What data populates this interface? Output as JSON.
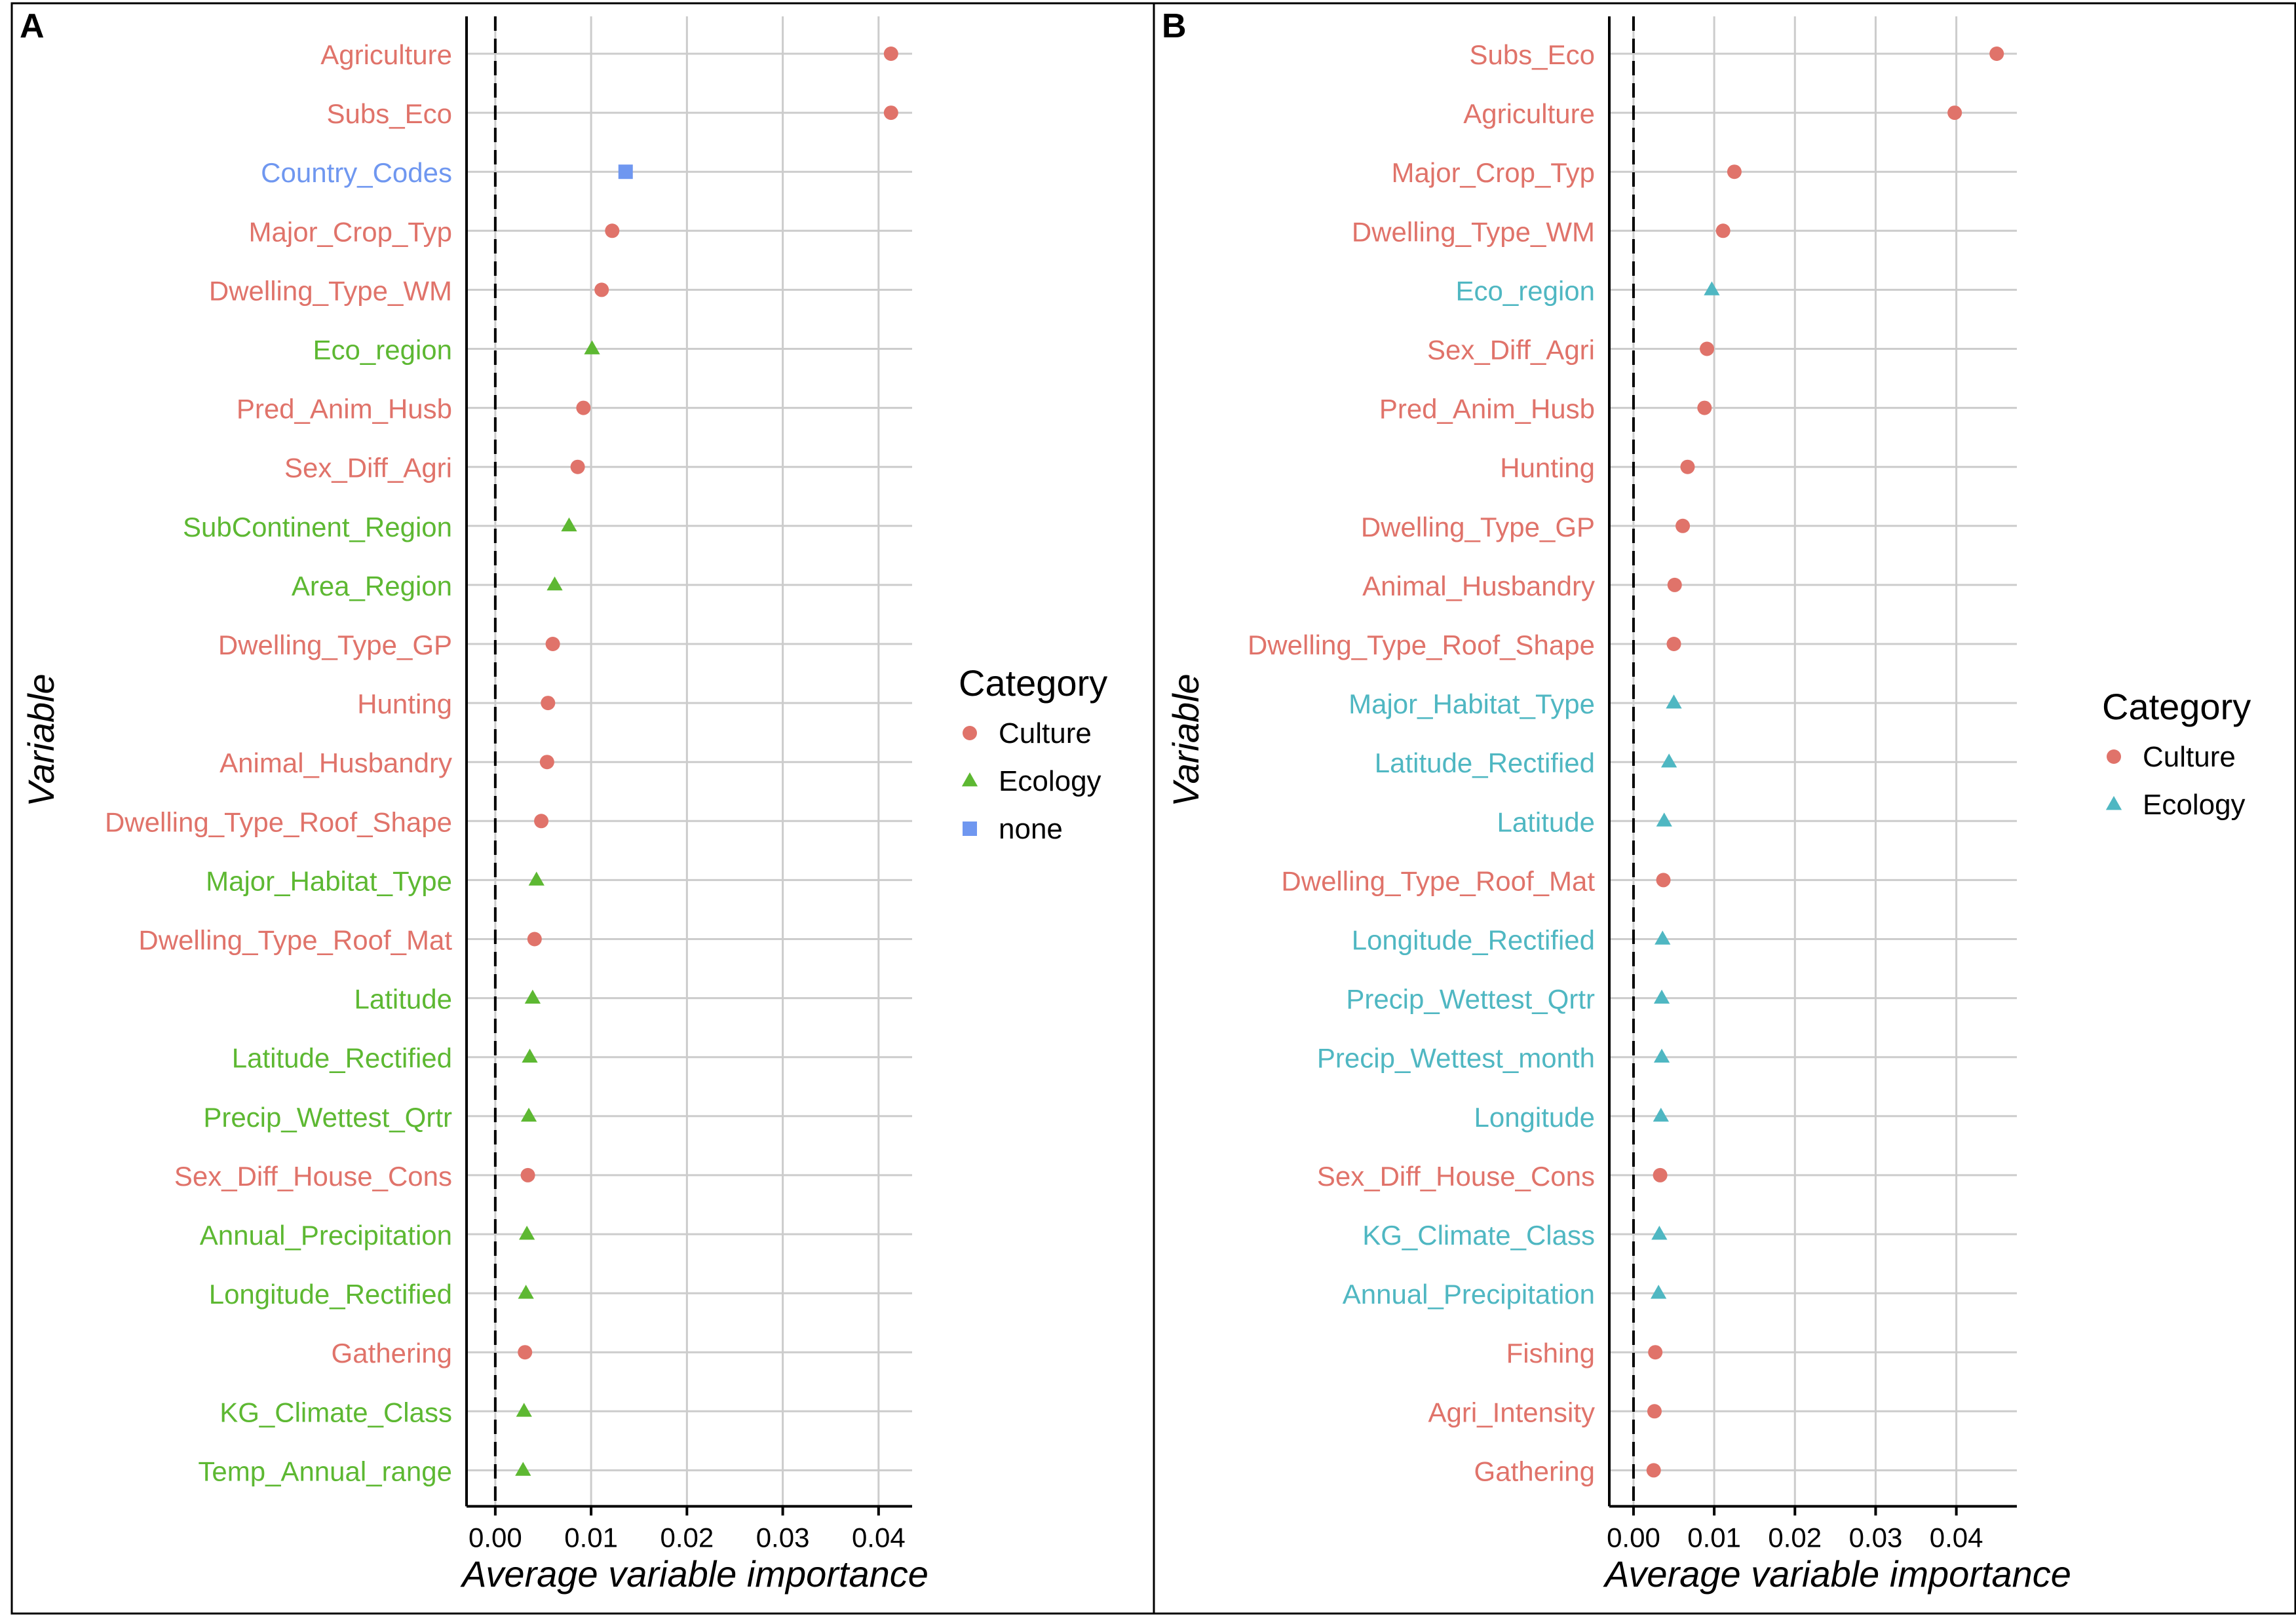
{
  "chart_data": [
    {
      "type": "scatter",
      "panel_label": "A",
      "xlabel": "Average variable importance",
      "ylabel": "Variable",
      "xlim": [
        -0.003,
        0.0435
      ],
      "xticks": [
        0.0,
        0.01,
        0.02,
        0.03,
        0.04
      ],
      "xtick_labels": [
        "0.00",
        "0.01",
        "0.02",
        "0.03",
        "0.04"
      ],
      "reference_line": 0.0,
      "grid": true,
      "legend": {
        "title": "Category",
        "position": "right",
        "entries": [
          {
            "name": "Culture",
            "color": "#E0736A",
            "marker": "circle"
          },
          {
            "name": "Ecology",
            "color": "#5DB832",
            "marker": "triangle"
          },
          {
            "name": "none",
            "color": "#6F97F0",
            "marker": "square"
          }
        ]
      },
      "points": [
        {
          "label": "Agriculture",
          "value": 0.0413,
          "category": "Culture"
        },
        {
          "label": "Subs_Eco",
          "value": 0.0413,
          "category": "Culture"
        },
        {
          "label": "Country_Codes",
          "value": 0.0136,
          "category": "none"
        },
        {
          "label": "Major_Crop_Typ",
          "value": 0.0122,
          "category": "Culture"
        },
        {
          "label": "Dwelling_Type_WM",
          "value": 0.0111,
          "category": "Culture"
        },
        {
          "label": "Eco_region",
          "value": 0.0101,
          "category": "Ecology"
        },
        {
          "label": "Pred_Anim_Husb",
          "value": 0.0092,
          "category": "Culture"
        },
        {
          "label": "Sex_Diff_Agri",
          "value": 0.0086,
          "category": "Culture"
        },
        {
          "label": "SubContinent_Region",
          "value": 0.0077,
          "category": "Ecology"
        },
        {
          "label": "Area_Region",
          "value": 0.0062,
          "category": "Ecology"
        },
        {
          "label": "Dwelling_Type_GP",
          "value": 0.006,
          "category": "Culture"
        },
        {
          "label": "Hunting",
          "value": 0.0055,
          "category": "Culture"
        },
        {
          "label": "Animal_Husbandry",
          "value": 0.0054,
          "category": "Culture"
        },
        {
          "label": "Dwelling_Type_Roof_Shape",
          "value": 0.0048,
          "category": "Culture"
        },
        {
          "label": "Major_Habitat_Type",
          "value": 0.0043,
          "category": "Ecology"
        },
        {
          "label": "Dwelling_Type_Roof_Mat",
          "value": 0.0041,
          "category": "Culture"
        },
        {
          "label": "Latitude",
          "value": 0.0039,
          "category": "Ecology"
        },
        {
          "label": "Latitude_Rectified",
          "value": 0.0036,
          "category": "Ecology"
        },
        {
          "label": "Precip_Wettest_Qrtr",
          "value": 0.0035,
          "category": "Ecology"
        },
        {
          "label": "Sex_Diff_House_Cons",
          "value": 0.0034,
          "category": "Culture"
        },
        {
          "label": "Annual_Precipitation",
          "value": 0.0033,
          "category": "Ecology"
        },
        {
          "label": "Longitude_Rectified",
          "value": 0.0032,
          "category": "Ecology"
        },
        {
          "label": "Gathering",
          "value": 0.0031,
          "category": "Culture"
        },
        {
          "label": "KG_Climate_Class",
          "value": 0.003,
          "category": "Ecology"
        },
        {
          "label": "Temp_Annual_range",
          "value": 0.0029,
          "category": "Ecology"
        }
      ]
    },
    {
      "type": "scatter",
      "panel_label": "B",
      "xlabel": "Average variable importance",
      "ylabel": "Variable",
      "xlim": [
        -0.003,
        0.0475
      ],
      "xticks": [
        0.0,
        0.01,
        0.02,
        0.03,
        0.04
      ],
      "xtick_labels": [
        "0.00",
        "0.01",
        "0.02",
        "0.03",
        "0.04"
      ],
      "reference_line": 0.0,
      "grid": true,
      "legend": {
        "title": "Category",
        "position": "right",
        "entries": [
          {
            "name": "Culture",
            "color": "#E0736A",
            "marker": "circle"
          },
          {
            "name": "Ecology",
            "color": "#4FB7C2",
            "marker": "triangle"
          }
        ]
      },
      "points": [
        {
          "label": "Subs_Eco",
          "value": 0.045,
          "category": "Culture"
        },
        {
          "label": "Agriculture",
          "value": 0.0398,
          "category": "Culture"
        },
        {
          "label": "Major_Crop_Typ",
          "value": 0.0125,
          "category": "Culture"
        },
        {
          "label": "Dwelling_Type_WM",
          "value": 0.0111,
          "category": "Culture"
        },
        {
          "label": "Eco_region",
          "value": 0.0097,
          "category": "Ecology"
        },
        {
          "label": "Sex_Diff_Agri",
          "value": 0.0091,
          "category": "Culture"
        },
        {
          "label": "Pred_Anim_Husb",
          "value": 0.0088,
          "category": "Culture"
        },
        {
          "label": "Hunting",
          "value": 0.0067,
          "category": "Culture"
        },
        {
          "label": "Dwelling_Type_GP",
          "value": 0.0061,
          "category": "Culture"
        },
        {
          "label": "Animal_Husbandry",
          "value": 0.0051,
          "category": "Culture"
        },
        {
          "label": "Dwelling_Type_Roof_Shape",
          "value": 0.005,
          "category": "Culture"
        },
        {
          "label": "Major_Habitat_Type",
          "value": 0.005,
          "category": "Ecology"
        },
        {
          "label": "Latitude_Rectified",
          "value": 0.0044,
          "category": "Ecology"
        },
        {
          "label": "Latitude",
          "value": 0.0038,
          "category": "Ecology"
        },
        {
          "label": "Dwelling_Type_Roof_Mat",
          "value": 0.0037,
          "category": "Culture"
        },
        {
          "label": "Longitude_Rectified",
          "value": 0.0036,
          "category": "Ecology"
        },
        {
          "label": "Precip_Wettest_Qrtr",
          "value": 0.0035,
          "category": "Ecology"
        },
        {
          "label": "Precip_Wettest_month",
          "value": 0.0035,
          "category": "Ecology"
        },
        {
          "label": "Longitude",
          "value": 0.0034,
          "category": "Ecology"
        },
        {
          "label": "Sex_Diff_House_Cons",
          "value": 0.0033,
          "category": "Culture"
        },
        {
          "label": "KG_Climate_Class",
          "value": 0.0032,
          "category": "Ecology"
        },
        {
          "label": "Annual_Precipitation",
          "value": 0.0031,
          "category": "Ecology"
        },
        {
          "label": "Fishing",
          "value": 0.0027,
          "category": "Culture"
        },
        {
          "label": "Agri_Intensity",
          "value": 0.0026,
          "category": "Culture"
        },
        {
          "label": "Gathering",
          "value": 0.0025,
          "category": "Culture"
        }
      ]
    }
  ]
}
